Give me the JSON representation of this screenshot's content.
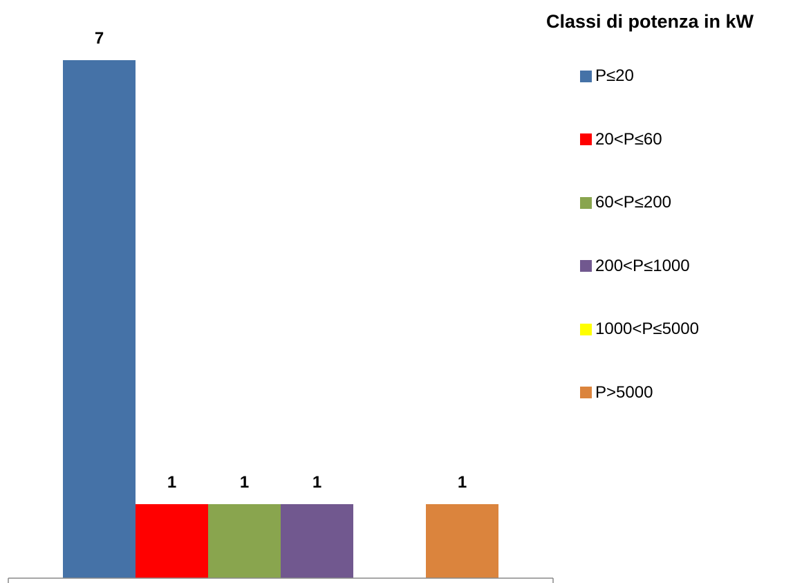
{
  "chart_data": {
    "type": "bar",
    "title": "",
    "xlabel": "",
    "ylabel": "",
    "ylim": [
      0,
      7
    ],
    "grid": false,
    "legend": {
      "title": "Classi di potenza in kW",
      "placement": "right"
    },
    "series": [
      {
        "name": "P≤20",
        "value": 7,
        "label": "7",
        "color": "#4572A7"
      },
      {
        "name": "20<P≤60",
        "value": 1,
        "label": "1",
        "color": "#FF0000"
      },
      {
        "name": "60<P≤200",
        "value": 1,
        "label": "1",
        "color": "#89A54E"
      },
      {
        "name": "200<P≤1000",
        "value": 1,
        "label": "1",
        "color": "#71588F"
      },
      {
        "name": "1000<P≤5000",
        "value": 0,
        "label": "",
        "color": "#FFFF00"
      },
      {
        "name": "P>5000",
        "value": 1,
        "label": "1",
        "color": "#DB843D"
      }
    ]
  }
}
